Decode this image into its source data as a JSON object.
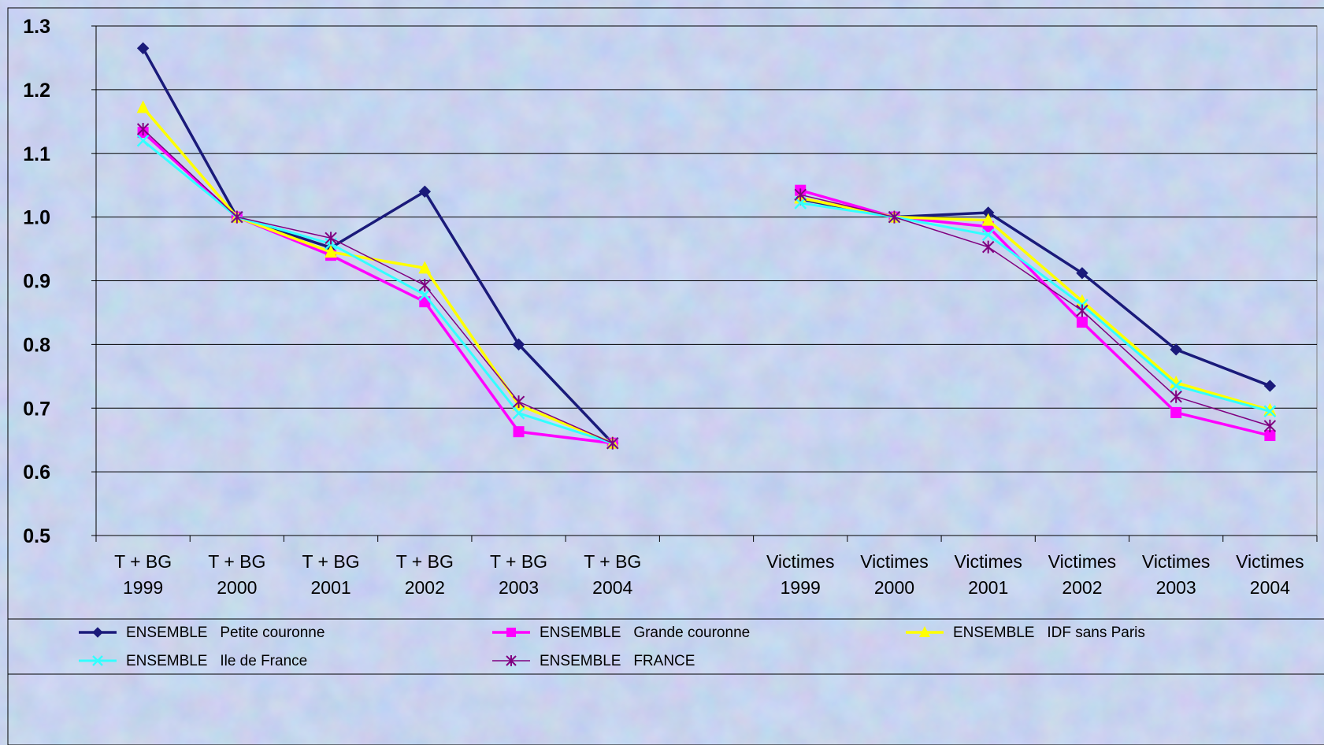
{
  "chart_data": {
    "type": "line",
    "title": "",
    "xlabel": "",
    "ylabel": "",
    "ylim": [
      0.5,
      1.3
    ],
    "y_ticks": [
      "0.5",
      "0.6",
      "0.7",
      "0.8",
      "0.9",
      "1.0",
      "1.1",
      "1.2",
      "1.3"
    ],
    "grid": true,
    "legend_position": "bottom",
    "categories": [
      [
        "T + BG",
        "1999"
      ],
      [
        "T + BG",
        "2000"
      ],
      [
        "T + BG",
        "2001"
      ],
      [
        "T + BG",
        "2002"
      ],
      [
        "T + BG",
        "2003"
      ],
      [
        "T + BG",
        "2004"
      ],
      [
        "",
        ""
      ],
      [
        "Victimes",
        "1999"
      ],
      [
        "Victimes",
        "2000"
      ],
      [
        "Victimes",
        "2001"
      ],
      [
        "Victimes",
        "2002"
      ],
      [
        "Victimes",
        "2003"
      ],
      [
        "Victimes",
        "2004"
      ]
    ],
    "series": [
      {
        "name": "ENSEMBLE   Petite couronne",
        "color": "#1a1a7a",
        "marker": "diamond",
        "values": [
          1.265,
          1.0,
          0.952,
          1.04,
          0.8,
          0.645,
          null,
          1.028,
          1.0,
          1.007,
          0.912,
          0.792,
          0.735
        ]
      },
      {
        "name": "ENSEMBLE   Grande couronne",
        "color": "#ff00ff",
        "marker": "square",
        "values": [
          1.133,
          1.0,
          0.94,
          0.867,
          0.663,
          0.645,
          null,
          1.042,
          1.0,
          0.985,
          0.835,
          0.693,
          0.657
        ]
      },
      {
        "name": "ENSEMBLE   IDF sans Paris",
        "color": "#ffff00",
        "marker": "triangle",
        "values": [
          1.172,
          1.0,
          0.945,
          0.92,
          0.705,
          0.645,
          null,
          1.03,
          1.0,
          0.995,
          0.868,
          0.74,
          0.697
        ]
      },
      {
        "name": "ENSEMBLE   Ile de France",
        "color": "#33ffff",
        "marker": "x",
        "values": [
          1.12,
          1.0,
          0.958,
          0.878,
          0.692,
          0.645,
          null,
          1.022,
          1.0,
          0.972,
          0.862,
          0.735,
          0.695
        ]
      },
      {
        "name": "ENSEMBLE   FRANCE",
        "color": "#800080",
        "marker": "star",
        "values": [
          1.138,
          1.0,
          0.967,
          0.893,
          0.71,
          0.645,
          null,
          1.035,
          1.0,
          0.953,
          0.853,
          0.718,
          0.672
        ]
      }
    ]
  }
}
